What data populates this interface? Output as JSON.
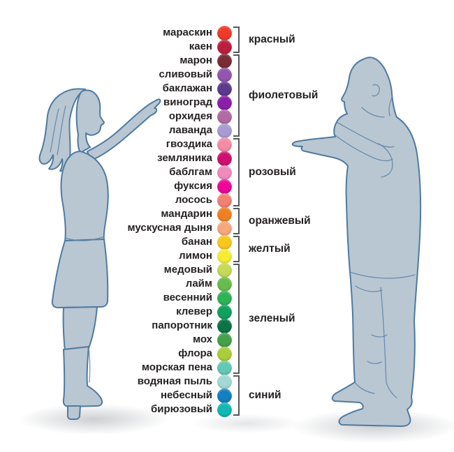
{
  "palette": {
    "items": [
      {
        "label": "мараскин",
        "color": "#EE3B2A"
      },
      {
        "label": "каен",
        "color": "#BE1E3E"
      },
      {
        "label": "марон",
        "color": "#7B2D36"
      },
      {
        "label": "сливовый",
        "color": "#9455AE"
      },
      {
        "label": "баклажан",
        "color": "#5C3A8E"
      },
      {
        "label": "виноград",
        "color": "#8B1FA9"
      },
      {
        "label": "орхидея",
        "color": "#B06BA4"
      },
      {
        "label": "лаванда",
        "color": "#A99CD4"
      },
      {
        "label": "гвоздика",
        "color": "#F48CA6"
      },
      {
        "label": "земляника",
        "color": "#CE0F6E"
      },
      {
        "label": "баблгам",
        "color": "#EF8ABD"
      },
      {
        "label": "фуксия",
        "color": "#F00599"
      },
      {
        "label": "лосось",
        "color": "#F28173"
      },
      {
        "label": "мандарин",
        "color": "#F08121"
      },
      {
        "label": "мускусная дыня",
        "color": "#F8A77D"
      },
      {
        "label": "банан",
        "color": "#FAC71E"
      },
      {
        "label": "лимон",
        "color": "#F5EC34"
      },
      {
        "label": "медовый",
        "color": "#C5DA57"
      },
      {
        "label": "лайм",
        "color": "#67BD4B"
      },
      {
        "label": "весенний",
        "color": "#2DB456"
      },
      {
        "label": "клевер",
        "color": "#0FA15E"
      },
      {
        "label": "папоротник",
        "color": "#0C7445"
      },
      {
        "label": "мох",
        "color": "#44A149"
      },
      {
        "label": "флора",
        "color": "#A9CE39"
      },
      {
        "label": "морская пена",
        "color": "#63C9B2"
      },
      {
        "label": "водяная пыль",
        "color": "#A3D9D4"
      },
      {
        "label": "небесный",
        "color": "#147FC0"
      },
      {
        "label": "бирюзовый",
        "color": "#12B8B4"
      }
    ],
    "groups": [
      {
        "label": "красный",
        "from": 0,
        "to": 1
      },
      {
        "label": "фиолетовый",
        "from": 2,
        "to": 7
      },
      {
        "label": "розовый",
        "from": 8,
        "to": 12
      },
      {
        "label": "оранжевый",
        "from": 13,
        "to": 14
      },
      {
        "label": "желтый",
        "from": 15,
        "to": 16
      },
      {
        "label": "зеленый",
        "from": 17,
        "to": 24
      },
      {
        "label": "синий",
        "from": 25,
        "to": 27
      }
    ]
  },
  "figures": {
    "left": "woman-pointing-figure",
    "right": "man-thinking-figure"
  }
}
